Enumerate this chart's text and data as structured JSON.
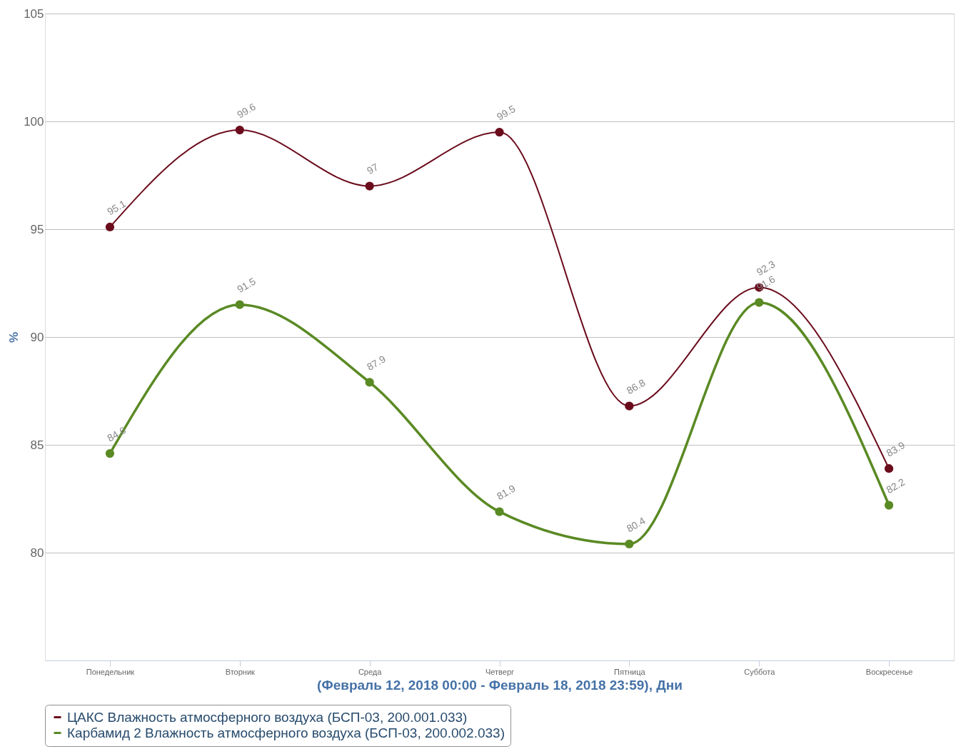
{
  "chart_data": {
    "type": "line",
    "ylabel": "%",
    "xlabel": "(Февраль 12, 2018 00:00 - Февраль 18, 2018 23:59), Дни",
    "categories": [
      "Понедельник",
      "Вторник",
      "Среда",
      "Четверг",
      "Пятница",
      "Суббота",
      "Воскресенье"
    ],
    "series": [
      {
        "name": "ЦАКС Влажность атмосферного воздуха (БСП-03, 200.001.033)",
        "color": "#6b0c1c",
        "values": [
          95.1,
          99.6,
          97,
          99.5,
          86.8,
          92.3,
          83.9
        ]
      },
      {
        "name": "Карбамид 2 Влажность атмосферного воздуха (БСП-03, 200.002.033)",
        "color": "#5a8a24",
        "values": [
          84.6,
          91.5,
          87.9,
          81.9,
          80.4,
          91.6,
          82.2
        ]
      }
    ],
    "ylim": [
      75,
      105
    ],
    "yticks": [
      80,
      85,
      90,
      95,
      100,
      105
    ],
    "grid": "y",
    "legend": "bottom",
    "marker": "circle",
    "line_style": "solid",
    "data_labels": true
  }
}
